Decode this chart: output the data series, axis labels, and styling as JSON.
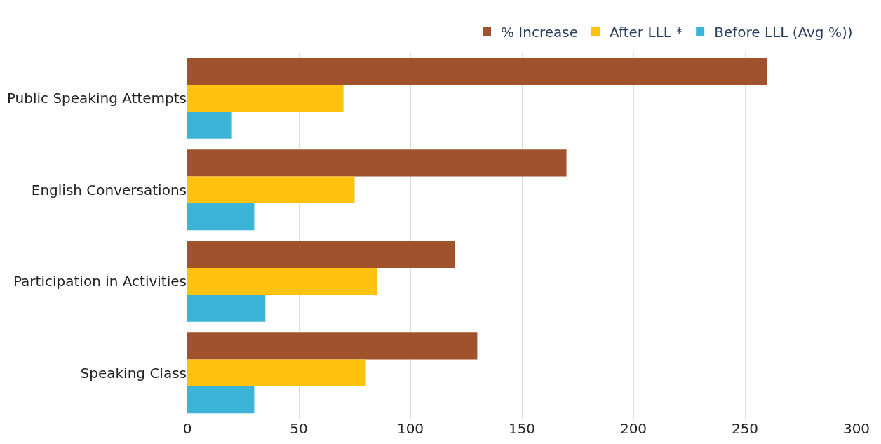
{
  "chart_data": {
    "type": "bar",
    "orientation": "horizontal",
    "categories": [
      "Public Speaking Attempts",
      "English Conversations",
      "Participation in Activities",
      "Speaking Class"
    ],
    "series": [
      {
        "name": "% Increase",
        "color": "#a0522d",
        "values": [
          260,
          170,
          120,
          130
        ]
      },
      {
        "name": "After LLL *",
        "color": "#ffc20e",
        "values": [
          70,
          75,
          85,
          80
        ]
      },
      {
        "name": "Before LLL (Avg %))",
        "color": "#3bb4d8",
        "values": [
          20,
          30,
          35,
          30
        ]
      }
    ],
    "xlim": [
      0,
      300
    ],
    "xticks": [
      0,
      50,
      100,
      150,
      200,
      250,
      300
    ],
    "grid": "x",
    "legend": "top right"
  }
}
